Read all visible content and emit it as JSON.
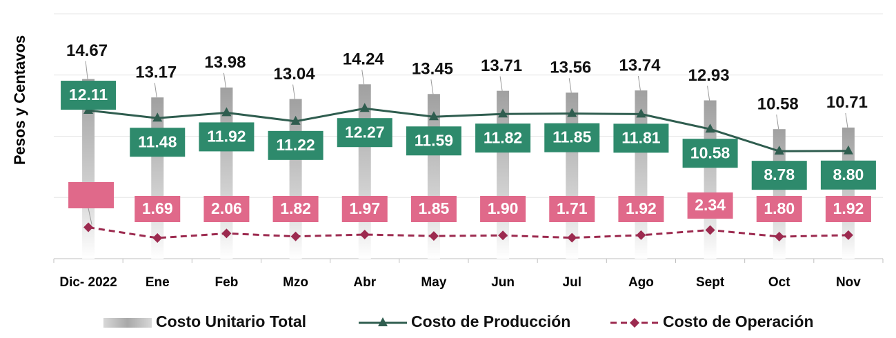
{
  "chart_data": {
    "type": "line",
    "y_axis_label": "Pesos y Centavos",
    "categories": [
      "Dic- 2022",
      "Ene",
      "Feb",
      "Mzo",
      "Abr",
      "May",
      "Jun",
      "Jul",
      "Ago",
      "Sept",
      "Oct",
      "Nov"
    ],
    "ylim": [
      0,
      20
    ],
    "yticks": [
      0,
      5,
      10,
      15,
      20
    ],
    "grid": true,
    "series": [
      {
        "name": "Costo Unitario Total",
        "kind": "bar",
        "color": "#a6a6a6",
        "values": [
          14.67,
          13.17,
          13.98,
          13.04,
          14.24,
          13.45,
          13.71,
          13.56,
          13.74,
          12.93,
          10.58,
          10.71
        ]
      },
      {
        "name": "Costo de Producción",
        "kind": "line",
        "color": "#2f5d4f",
        "label_color": "#2e8a6c",
        "values": [
          12.11,
          11.48,
          11.92,
          11.22,
          12.27,
          11.59,
          11.82,
          11.85,
          11.81,
          10.58,
          8.78,
          8.8
        ],
        "value_labels": [
          "12.11",
          "11.48",
          "11.92",
          "11.22",
          "12.27",
          "11.59",
          "11.82",
          "11.85",
          "11.81",
          "10.58",
          "8.78",
          "8.80"
        ]
      },
      {
        "name": "Costo de Operación",
        "kind": "dashed",
        "color": "#9c2a4f",
        "label_color": "#e0698a",
        "values": [
          2.56,
          1.69,
          2.06,
          1.82,
          1.97,
          1.85,
          1.9,
          1.71,
          1.92,
          2.34,
          1.8,
          1.92
        ],
        "value_labels": [
          null,
          "1.69",
          "2.06",
          "1.82",
          "1.97",
          "1.85",
          "1.90",
          "1.71",
          "1.92",
          "2.34",
          "1.80",
          "1.92"
        ]
      }
    ]
  }
}
